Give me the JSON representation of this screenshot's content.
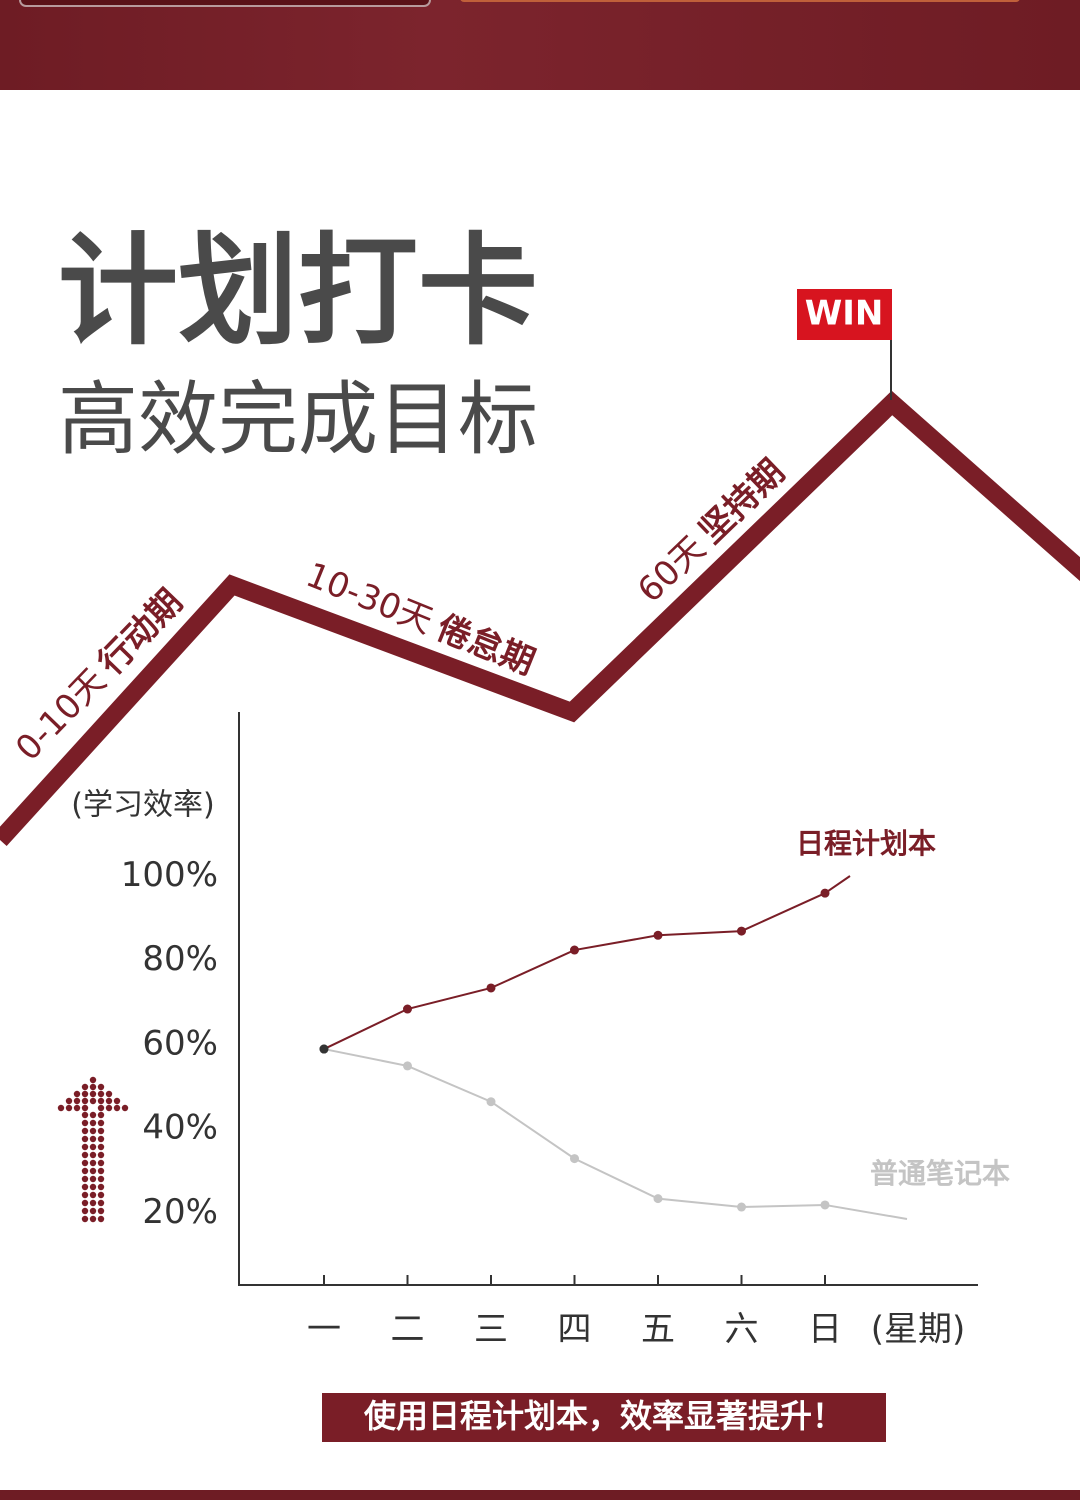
{
  "header": {
    "title": "计划打卡",
    "subtitle": "高效完成目标"
  },
  "stages": [
    {
      "days": "0-10天",
      "name": "行动期"
    },
    {
      "days": "10-30天",
      "name": "倦怠期"
    },
    {
      "days": "60天",
      "name": "坚持期"
    }
  ],
  "goal": "WIN",
  "chart_data": {
    "type": "line",
    "y_label": "(学习效率)",
    "x_label": "(星期)",
    "categories": [
      "一",
      "二",
      "三",
      "四",
      "五",
      "六",
      "日"
    ],
    "series": [
      {
        "name": "日程计划本",
        "color": "#7a1e27",
        "values": [
          59,
          68.5,
          73.5,
          82.5,
          86,
          87,
          96
        ]
      },
      {
        "name": "普通笔记本",
        "color": "#c4c4c4",
        "values": [
          59,
          55,
          46.5,
          33,
          23.5,
          21.5,
          22
        ]
      }
    ],
    "ylim": [
      3,
      139
    ],
    "yticks": [
      {
        "value": 20,
        "label": "20%"
      },
      {
        "value": 40,
        "label": "40%"
      },
      {
        "value": 60,
        "label": "60%"
      },
      {
        "value": 80,
        "label": "80%"
      },
      {
        "value": 100,
        "label": "100%"
      }
    ]
  },
  "footer": "使用日程计划本，效率显著提升！"
}
